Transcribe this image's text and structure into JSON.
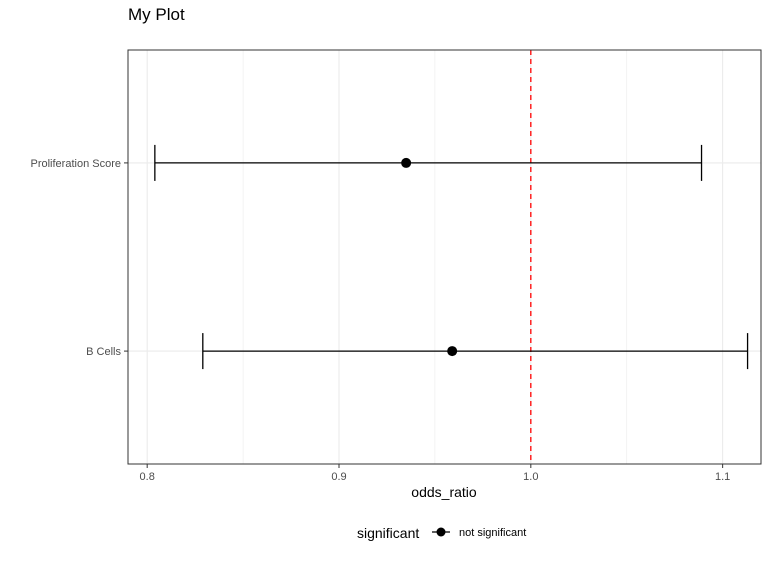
{
  "chart_data": {
    "type": "forest",
    "title": "My Plot",
    "xlabel": "odds_ratio",
    "ylabel": "",
    "xlim": [
      0.79,
      1.12
    ],
    "x_ticks": [
      0.8,
      0.9,
      1.0,
      1.1
    ],
    "x_tick_labels": [
      "0.8",
      "0.9",
      "1.0",
      "1.1"
    ],
    "categories": [
      "Proliferation Score",
      "B Cells"
    ],
    "points": [
      {
        "label": "Proliferation Score",
        "estimate": 0.935,
        "lower": 0.804,
        "upper": 1.089
      },
      {
        "label": "B Cells",
        "estimate": 0.959,
        "lower": 0.829,
        "upper": 1.113
      }
    ],
    "reference_line": {
      "x": 1.0,
      "color": "#ff0000",
      "style": "dashed"
    },
    "legend": {
      "title": "significant",
      "entries": [
        "not significant"
      ],
      "placement": "bottom"
    },
    "grid": true,
    "colors": {
      "point": "#000000",
      "grid": "#ebebeb",
      "panel_border": "#333333"
    }
  }
}
